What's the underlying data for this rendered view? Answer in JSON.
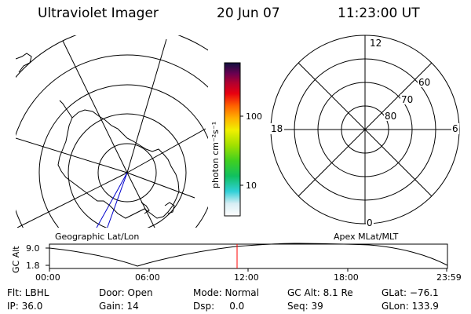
{
  "header": {
    "title": "Ultraviolet Imager",
    "date": "20 Jun 07",
    "time": "11:23:00 UT"
  },
  "colorbar": {
    "unit_label": "photon cm⁻²s⁻¹",
    "ticks": [
      "100",
      "10"
    ]
  },
  "maps": {
    "left_caption": "Geographic Lat/Lon",
    "right_caption": "Apex MLat/MLT"
  },
  "polar_grid": {
    "mlt_labels": [
      "12",
      "18",
      "6",
      "0"
    ],
    "lat_labels": [
      "60",
      "70",
      "80"
    ]
  },
  "altitude_plot": {
    "ylabel": "GC Alt",
    "y_ticks": [
      "9.0",
      "1.8"
    ],
    "x_ticks": [
      "00:00",
      "06:00",
      "12:00",
      "18:00",
      "23:59"
    ],
    "current_marker_color": "#ff0000"
  },
  "status": {
    "flt": "Flt: LBHL",
    "ip": "IP: 36.0",
    "door": "Door: Open",
    "gain": "Gain: 14",
    "mode": "Mode: Normal",
    "dsp": "Dsp:     0.0",
    "gc_alt": "GC Alt: 8.1 Re",
    "seq": "Seq: 39",
    "glat": "GLat: −76.1",
    "glon": "GLon: 133.9"
  }
}
